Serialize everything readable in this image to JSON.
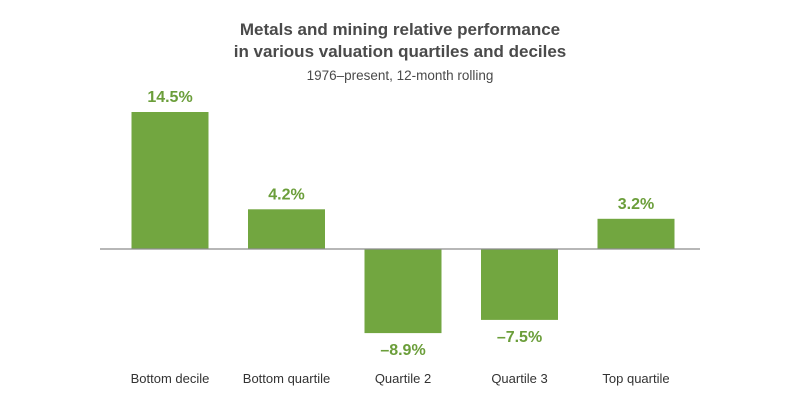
{
  "chart_data": {
    "type": "bar",
    "title": "Metals and mining relative performance in various valuation quartiles and deciles",
    "title_lines": [
      "Metals and mining relative performance",
      "in various valuation quartiles and deciles"
    ],
    "subtitle": "1976–present, 12-month rolling",
    "categories": [
      "Bottom decile",
      "Bottom quartile",
      "Quartile 2",
      "Quartile 3",
      "Top quartile"
    ],
    "values": [
      14.5,
      4.2,
      -8.9,
      -7.5,
      3.2
    ],
    "value_labels": [
      "14.5%",
      "4.2%",
      "–8.9%",
      "–7.5%",
      "3.2%"
    ],
    "xlabel": "",
    "ylabel": "",
    "ylim": [
      -10,
      16
    ],
    "grid": false,
    "legend": "none"
  },
  "colors": {
    "bar": "#72a640",
    "label": "#6b9e3a",
    "axis": "#8c8c8c",
    "title": "#4a4a4a"
  }
}
